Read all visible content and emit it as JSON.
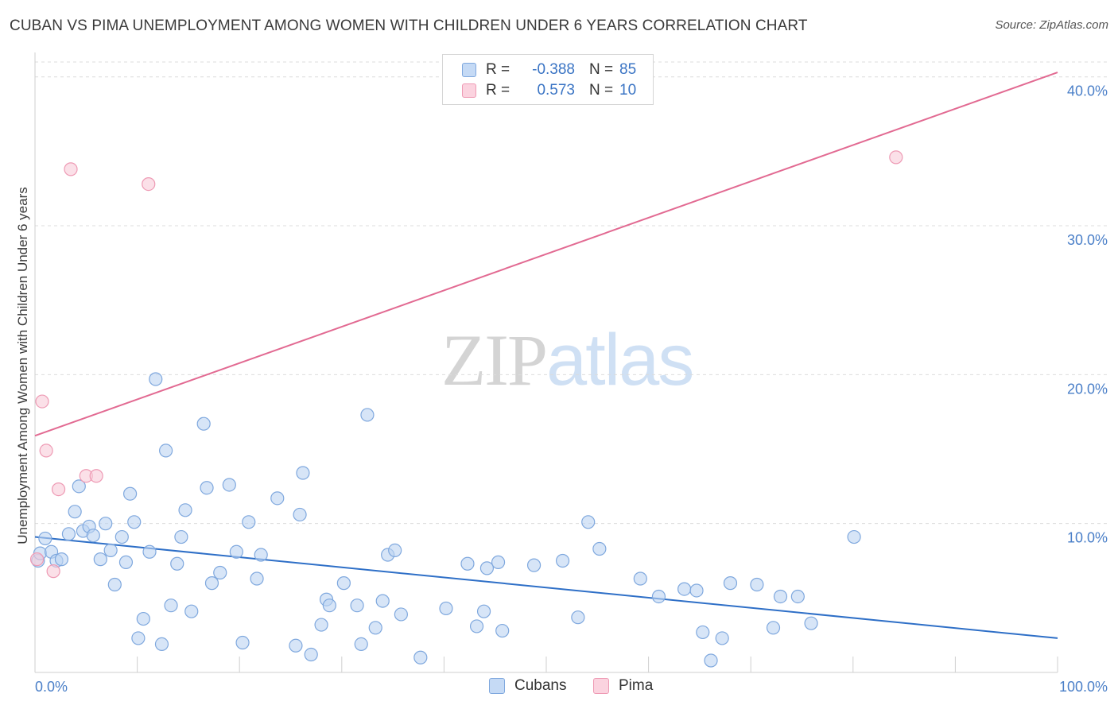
{
  "header": {
    "title": "CUBAN VS PIMA UNEMPLOYMENT AMONG WOMEN WITH CHILDREN UNDER 6 YEARS CORRELATION CHART",
    "source": "Source: ZipAtlas.com"
  },
  "watermark": {
    "zip": "ZIP",
    "atlas": "atlas"
  },
  "legend": {
    "rows": [
      {
        "r_label": "R =",
        "r_value": "-0.388",
        "n_label": "N =",
        "n_value": "85",
        "color": "#a9c8f0"
      },
      {
        "r_label": "R =",
        "r_value": "0.573",
        "n_label": "N =",
        "n_value": "10",
        "color": "#f5b8cb"
      }
    ]
  },
  "bottom_legend": {
    "cubans": "Cubans",
    "pima": "Pima"
  },
  "colors": {
    "cubans_fill": "#bcd4f2",
    "cubans_stroke": "#7fa8de",
    "cubans_line": "#2e6fc7",
    "pima_fill": "#f9ccd9",
    "pima_stroke": "#ee9ab4",
    "pima_line": "#e26a92"
  },
  "chart_data": {
    "type": "scatter",
    "ylabel": "Unemployment Among Women with Children Under 6 years",
    "xlabel": "",
    "x_tick_labels": [
      "0.0%",
      "100.0%"
    ],
    "y_tick_labels": [
      "10.0%",
      "20.0%",
      "30.0%",
      "40.0%"
    ],
    "xlim": [
      0,
      100
    ],
    "ylim": [
      0,
      41
    ],
    "grid": true,
    "series": [
      {
        "name": "Cubans",
        "points": [
          [
            0.3,
            7.5
          ],
          [
            0.5,
            8.0
          ],
          [
            1.0,
            9.0
          ],
          [
            1.6,
            8.1
          ],
          [
            2.1,
            7.5
          ],
          [
            2.6,
            7.6
          ],
          [
            3.3,
            9.3
          ],
          [
            3.9,
            10.8
          ],
          [
            4.3,
            12.5
          ],
          [
            4.7,
            9.5
          ],
          [
            5.3,
            9.8
          ],
          [
            5.7,
            9.2
          ],
          [
            6.4,
            7.6
          ],
          [
            6.9,
            10.0
          ],
          [
            7.4,
            8.2
          ],
          [
            7.8,
            5.9
          ],
          [
            8.5,
            9.1
          ],
          [
            8.9,
            7.4
          ],
          [
            9.3,
            12.0
          ],
          [
            9.7,
            10.1
          ],
          [
            10.1,
            2.3
          ],
          [
            10.6,
            3.6
          ],
          [
            11.2,
            8.1
          ],
          [
            11.8,
            19.7
          ],
          [
            12.4,
            1.9
          ],
          [
            12.8,
            14.9
          ],
          [
            13.3,
            4.5
          ],
          [
            13.9,
            7.3
          ],
          [
            14.3,
            9.1
          ],
          [
            14.7,
            10.9
          ],
          [
            15.3,
            4.1
          ],
          [
            16.5,
            16.7
          ],
          [
            16.8,
            12.4
          ],
          [
            17.3,
            6.0
          ],
          [
            18.1,
            6.7
          ],
          [
            19.0,
            12.6
          ],
          [
            19.7,
            8.1
          ],
          [
            20.3,
            2.0
          ],
          [
            20.9,
            10.1
          ],
          [
            21.7,
            6.3
          ],
          [
            22.1,
            7.9
          ],
          [
            23.7,
            11.7
          ],
          [
            25.5,
            1.8
          ],
          [
            25.9,
            10.6
          ],
          [
            26.2,
            13.4
          ],
          [
            27.0,
            1.2
          ],
          [
            28.0,
            3.2
          ],
          [
            28.5,
            4.9
          ],
          [
            28.8,
            4.5
          ],
          [
            30.2,
            6.0
          ],
          [
            31.5,
            4.5
          ],
          [
            31.9,
            1.9
          ],
          [
            32.5,
            17.3
          ],
          [
            33.3,
            3.0
          ],
          [
            34.0,
            4.8
          ],
          [
            34.5,
            7.9
          ],
          [
            35.2,
            8.2
          ],
          [
            35.8,
            3.9
          ],
          [
            37.7,
            1.0
          ],
          [
            40.2,
            4.3
          ],
          [
            42.3,
            7.3
          ],
          [
            43.2,
            3.1
          ],
          [
            43.9,
            4.1
          ],
          [
            44.2,
            7.0
          ],
          [
            45.3,
            7.4
          ],
          [
            45.7,
            2.8
          ],
          [
            48.8,
            7.2
          ],
          [
            51.6,
            7.5
          ],
          [
            53.1,
            3.7
          ],
          [
            54.1,
            10.1
          ],
          [
            55.2,
            8.3
          ],
          [
            59.2,
            6.3
          ],
          [
            61.0,
            5.1
          ],
          [
            63.5,
            5.6
          ],
          [
            64.7,
            5.5
          ],
          [
            65.3,
            2.7
          ],
          [
            66.1,
            0.8
          ],
          [
            67.2,
            2.3
          ],
          [
            68.0,
            6.0
          ],
          [
            70.6,
            5.9
          ],
          [
            72.2,
            3.0
          ],
          [
            72.9,
            5.1
          ],
          [
            74.6,
            5.1
          ],
          [
            75.9,
            3.3
          ],
          [
            80.1,
            9.1
          ]
        ]
      },
      {
        "name": "Pima",
        "points": [
          [
            0.2,
            7.6
          ],
          [
            0.7,
            18.2
          ],
          [
            1.1,
            14.9
          ],
          [
            1.8,
            6.8
          ],
          [
            2.3,
            12.3
          ],
          [
            3.5,
            33.8
          ],
          [
            5.0,
            13.2
          ],
          [
            6.0,
            13.2
          ],
          [
            11.1,
            32.8
          ],
          [
            84.2,
            34.6
          ]
        ]
      }
    ],
    "trend_lines": [
      {
        "name": "Cubans",
        "x": [
          0,
          100
        ],
        "y": [
          9.1,
          2.3
        ]
      },
      {
        "name": "Pima",
        "x": [
          0,
          100
        ],
        "y": [
          15.9,
          40.3
        ]
      }
    ]
  }
}
